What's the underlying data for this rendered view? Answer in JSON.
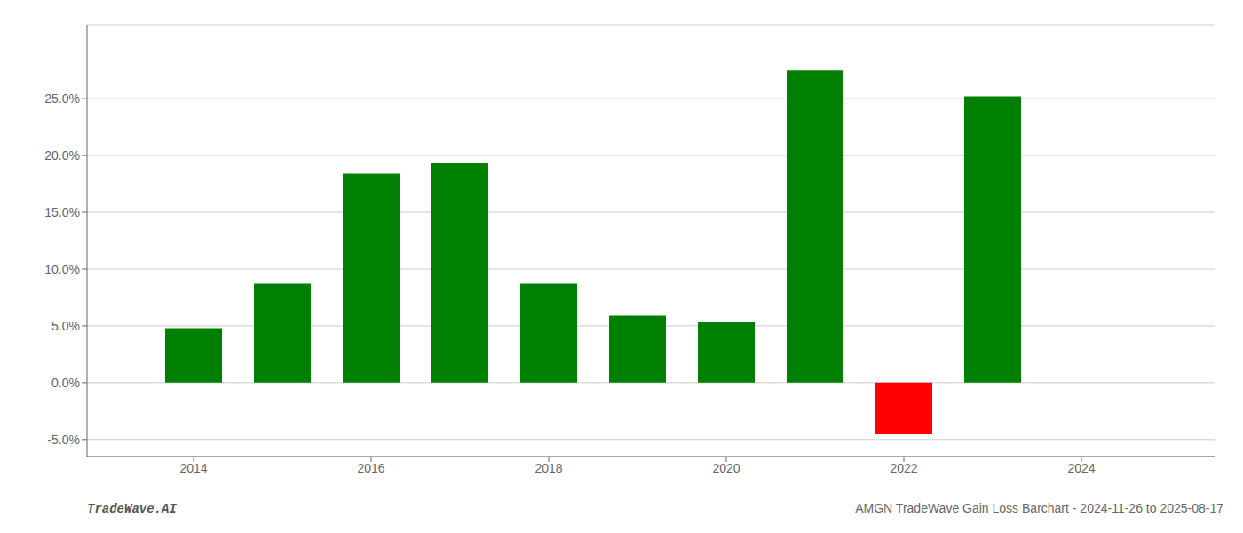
{
  "chart_data": {
    "type": "bar",
    "x": [
      2014,
      2015,
      2016,
      2017,
      2018,
      2019,
      2020,
      2021,
      2022,
      2023
    ],
    "values": [
      0.048,
      0.087,
      0.184,
      0.193,
      0.087,
      0.059,
      0.053,
      0.275,
      -0.045,
      0.252
    ],
    "colors": [
      "#008000",
      "#008000",
      "#008000",
      "#008000",
      "#008000",
      "#008000",
      "#008000",
      "#008000",
      "#ff0000",
      "#008000"
    ],
    "xlim": [
      2012.8,
      2025.5
    ],
    "xticks": [
      2014,
      2016,
      2018,
      2020,
      2022,
      2024
    ],
    "ylim": [
      -0.065,
      0.315
    ],
    "yticks": [
      {
        "value": -0.05,
        "label": "-5.0%"
      },
      {
        "value": 0.0,
        "label": "0.0%"
      },
      {
        "value": 0.05,
        "label": "5.0%"
      },
      {
        "value": 0.1,
        "label": "10.0%"
      },
      {
        "value": 0.15,
        "label": "15.0%"
      },
      {
        "value": 0.2,
        "label": "20.0%"
      },
      {
        "value": 0.25,
        "label": "25.0%"
      }
    ],
    "grid": true,
    "annotations": [
      "TradeWave.AI",
      "AMGN TradeWave Gain Loss Barchart - 2024-11-26 to 2025-08-17"
    ]
  }
}
